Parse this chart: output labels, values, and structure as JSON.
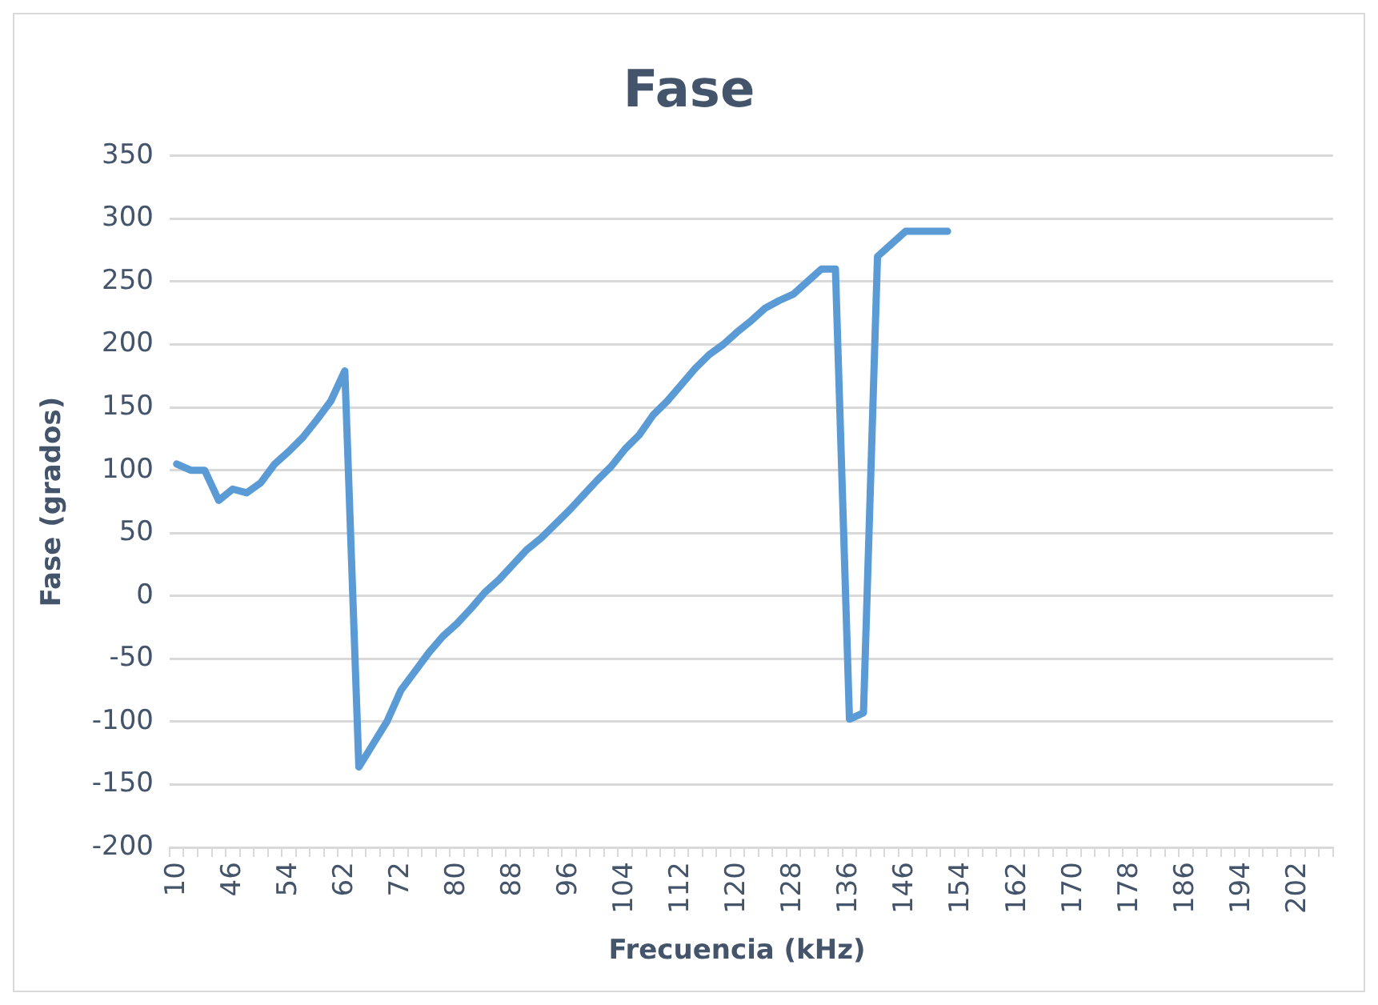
{
  "chart_data": {
    "type": "line",
    "title": "Fase",
    "xlabel": "Frecuencia (kHz)",
    "ylabel": "Fase (grados)",
    "categories": [
      "10",
      null,
      null,
      null,
      "46",
      null,
      null,
      null,
      "54",
      null,
      null,
      null,
      "62",
      null,
      null,
      null,
      "72",
      null,
      null,
      null,
      "80",
      null,
      null,
      null,
      "88",
      null,
      null,
      null,
      "96",
      null,
      null,
      null,
      "104",
      null,
      null,
      null,
      "112",
      null,
      null,
      null,
      "120",
      null,
      null,
      null,
      "128",
      null,
      null,
      null,
      "136",
      null,
      null,
      null,
      "146",
      null,
      null,
      null,
      "154",
      null,
      null,
      null,
      "162",
      null,
      null,
      null,
      "170",
      null,
      null,
      null,
      "178",
      null,
      null,
      null,
      "186",
      null,
      null,
      null,
      "194",
      null,
      null,
      null,
      "202",
      null,
      null
    ],
    "series": [
      {
        "color": "#5b9bd5",
        "values": [
          105,
          100,
          100,
          76,
          85,
          82,
          90,
          105,
          115,
          126,
          140,
          155,
          179,
          -136,
          -118,
          -100,
          -75,
          -60,
          -45,
          -32,
          -22,
          -10,
          3,
          13,
          25,
          37,
          46,
          57,
          68,
          80,
          92,
          103,
          117,
          128,
          144,
          155,
          168,
          181,
          192,
          200,
          210,
          219,
          229,
          235,
          240,
          250,
          260,
          260,
          -98,
          -93,
          270,
          280,
          290,
          290,
          290,
          290,
          null,
          null,
          null,
          null,
          null,
          null,
          null,
          null,
          null,
          null,
          null,
          null,
          null,
          null,
          null,
          null,
          null,
          null,
          null,
          null,
          null,
          null,
          null,
          null,
          null,
          null,
          null
        ]
      }
    ],
    "ylim": [
      -200,
      350
    ],
    "yticks": [
      -200,
      -150,
      -100,
      -50,
      0,
      50,
      100,
      150,
      200,
      250,
      300,
      350
    ],
    "grid": "y",
    "legend": false,
    "marker": "none",
    "line_style": "solid"
  }
}
